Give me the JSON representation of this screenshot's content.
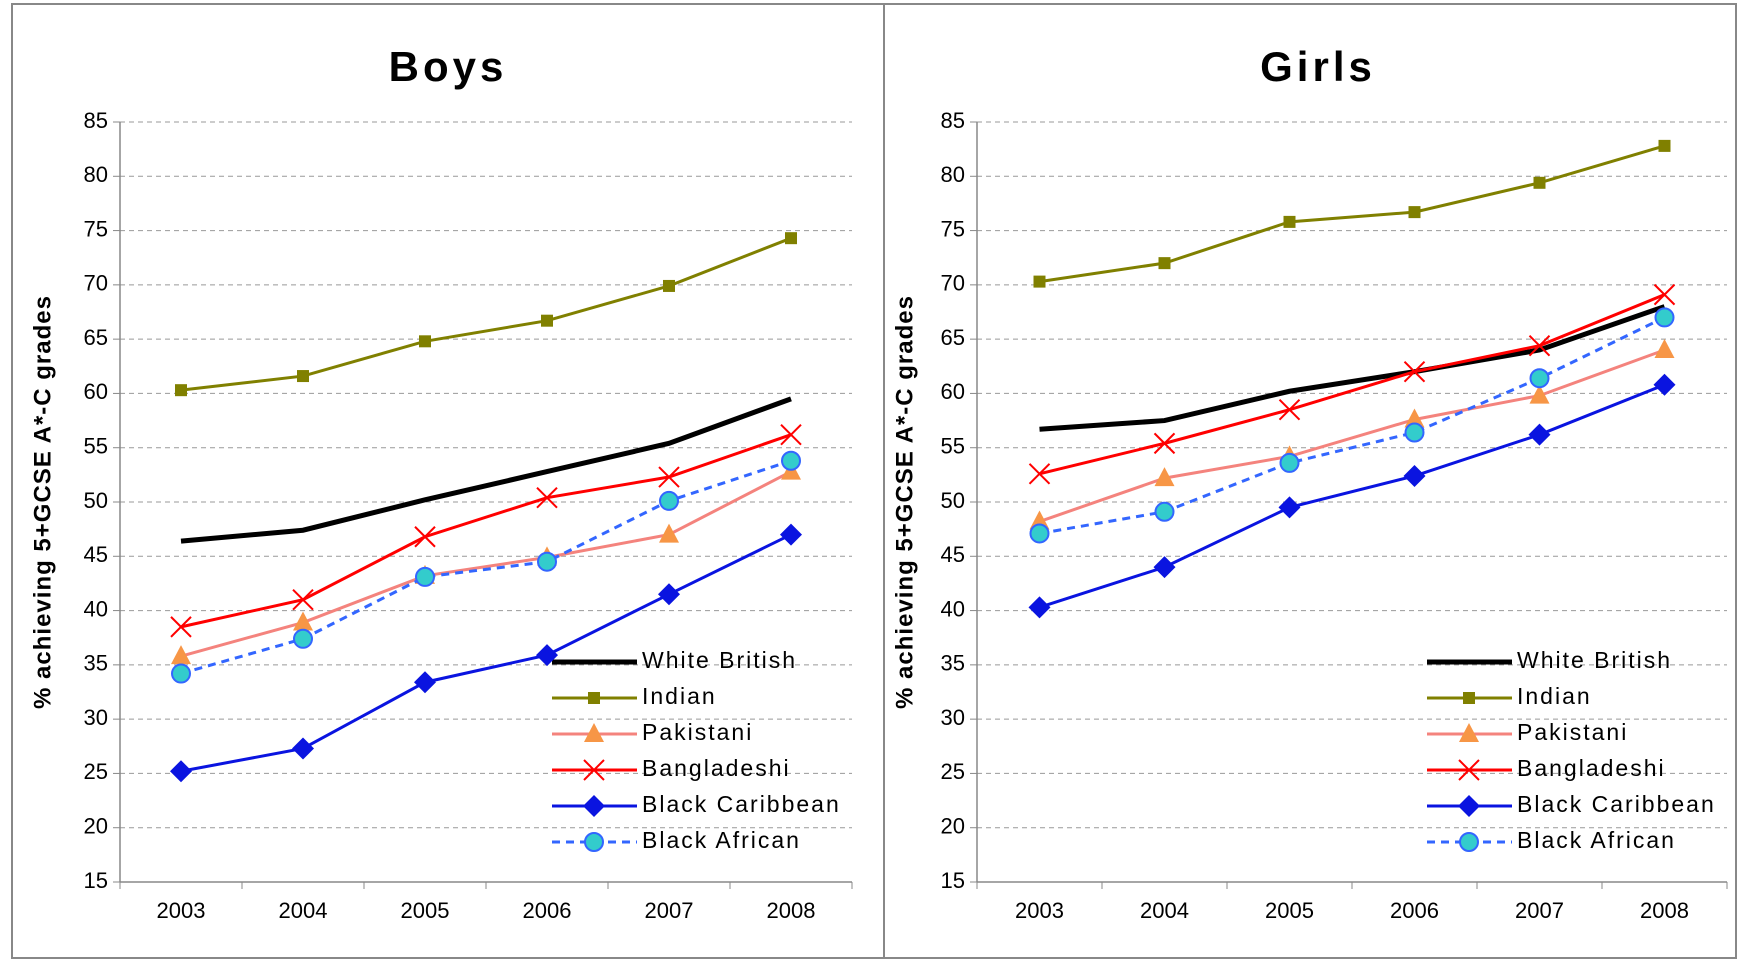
{
  "chart_data": [
    {
      "type": "line",
      "title": "Boys",
      "y_label": "% achieving 5+GCSE A*-C grades",
      "categories": [
        "2003",
        "2004",
        "2005",
        "2006",
        "2007",
        "2008"
      ],
      "ylim": [
        15,
        85
      ],
      "yticks": [
        15,
        20,
        25,
        30,
        35,
        40,
        45,
        50,
        55,
        60,
        65,
        70,
        75,
        80,
        85
      ],
      "grid": true,
      "legend": "lower right",
      "series": [
        {
          "name": "White British",
          "color": "#000000",
          "marker": "none",
          "values": [
            46.4,
            47.4,
            50.2,
            52.8,
            55.4,
            59.5
          ]
        },
        {
          "name": "Indian",
          "color": "#808000",
          "marker": "square",
          "values": [
            60.3,
            61.6,
            64.8,
            66.7,
            69.9,
            74.3
          ]
        },
        {
          "name": "Pakistani",
          "color": "#f4837d",
          "marker": "triangle",
          "marker_color": "#f79646",
          "values": [
            35.8,
            38.9,
            43.2,
            44.9,
            47.0,
            52.8
          ]
        },
        {
          "name": "Bangladeshi",
          "color": "#ff0000",
          "marker": "x",
          "values": [
            38.5,
            41.0,
            46.8,
            50.4,
            52.3,
            56.2
          ]
        },
        {
          "name": "Black Caribbean",
          "color": "#0a14e0",
          "marker": "diamond",
          "values": [
            25.2,
            27.3,
            33.4,
            35.9,
            41.5,
            47.0
          ]
        },
        {
          "name": "Black African",
          "color": "#3366ff",
          "marker": "circle",
          "marker_color": "#33cccc",
          "dashed": true,
          "values": [
            34.2,
            37.4,
            43.1,
            44.5,
            50.1,
            53.8
          ]
        }
      ]
    },
    {
      "type": "line",
      "title": "Girls",
      "y_label": "% achieving 5+GCSE A*-C grades",
      "categories": [
        "2003",
        "2004",
        "2005",
        "2006",
        "2007",
        "2008"
      ],
      "ylim": [
        15,
        85
      ],
      "yticks": [
        15,
        20,
        25,
        30,
        35,
        40,
        45,
        50,
        55,
        60,
        65,
        70,
        75,
        80,
        85
      ],
      "grid": true,
      "legend": "lower right",
      "series": [
        {
          "name": "White British",
          "color": "#000000",
          "marker": "none",
          "values": [
            56.7,
            57.5,
            60.2,
            62.0,
            64.0,
            68.0
          ]
        },
        {
          "name": "Indian",
          "color": "#808000",
          "marker": "square",
          "values": [
            70.3,
            72.0,
            75.8,
            76.7,
            79.4,
            82.8
          ]
        },
        {
          "name": "Pakistani",
          "color": "#f4837d",
          "marker": "triangle",
          "marker_color": "#f79646",
          "values": [
            48.2,
            52.2,
            54.2,
            57.6,
            59.8,
            64.0
          ]
        },
        {
          "name": "Bangladeshi",
          "color": "#ff0000",
          "marker": "x",
          "values": [
            52.6,
            55.4,
            58.5,
            62.0,
            64.4,
            69.1
          ]
        },
        {
          "name": "Black Caribbean",
          "color": "#0a14e0",
          "marker": "diamond",
          "values": [
            40.3,
            44.0,
            49.5,
            52.4,
            56.2,
            60.8
          ]
        },
        {
          "name": "Black African",
          "color": "#3366ff",
          "marker": "circle",
          "marker_color": "#33cccc",
          "dashed": true,
          "values": [
            47.1,
            49.1,
            53.6,
            56.4,
            61.4,
            67.0
          ]
        }
      ]
    }
  ]
}
